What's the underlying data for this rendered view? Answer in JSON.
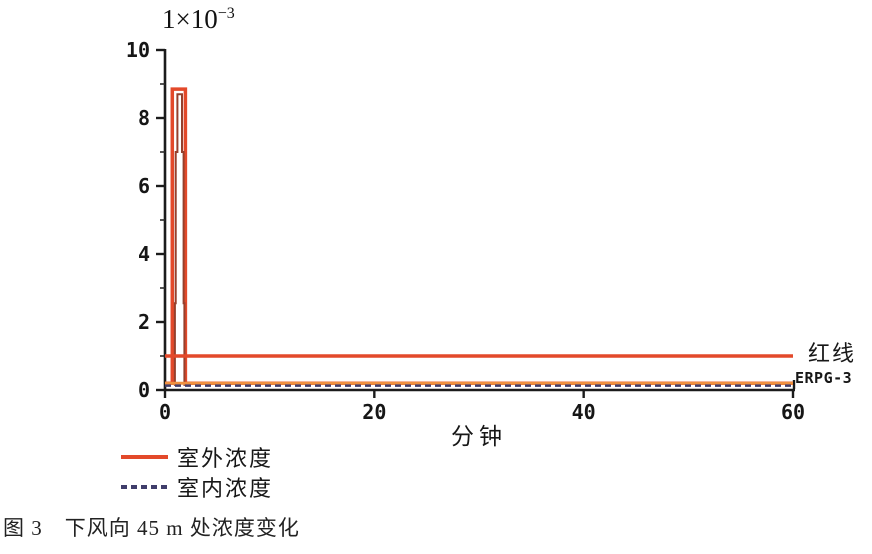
{
  "figure": {
    "caption": "图 3　下风向 45 m 处浓度变化"
  },
  "chart_data": {
    "type": "line",
    "title": "",
    "xlabel": "分钟",
    "ylabel": "",
    "y_multiplier_base": "1×10",
    "y_multiplier_exp": "−3",
    "xlim": [
      0,
      60
    ],
    "ylim": [
      0,
      10
    ],
    "x_ticks": [
      0,
      20,
      40,
      60
    ],
    "y_ticks": [
      0,
      2,
      4,
      6,
      8,
      10
    ],
    "y_minor_ticks": [
      1,
      3,
      5,
      7,
      9
    ],
    "grid": false,
    "peak_value_e-3": 8.8,
    "series": [
      {
        "id": "outdoor",
        "name": "室外浓度",
        "color": "#e3492a",
        "width": 3.5,
        "dash": "",
        "points": [
          [
            0,
            0.2
          ],
          [
            0.7,
            0.2
          ],
          [
            0.7,
            8.85
          ],
          [
            1.95,
            8.85
          ],
          [
            1.95,
            0.2
          ],
          [
            60,
            0.2
          ]
        ]
      },
      {
        "id": "outdoor-peak-inner-edge",
        "name": "",
        "color": "#96402c",
        "width": 2,
        "dash": "",
        "points": [
          [
            0.95,
            0.12
          ],
          [
            0.95,
            2.55
          ],
          [
            1.02,
            2.55
          ],
          [
            1.02,
            7.0
          ],
          [
            1.18,
            7.0
          ],
          [
            1.18,
            8.7
          ],
          [
            1.62,
            8.7
          ],
          [
            1.62,
            7.0
          ],
          [
            1.78,
            7.0
          ],
          [
            1.78,
            2.55
          ],
          [
            1.85,
            2.55
          ],
          [
            1.85,
            0.12
          ]
        ]
      },
      {
        "id": "redline",
        "name": "红线",
        "label": "红线",
        "color": "#e3492a",
        "width": 3.5,
        "dash": "",
        "points": [
          [
            0,
            1.0
          ],
          [
            60,
            1.0
          ]
        ]
      },
      {
        "id": "erpg3",
        "name": "ERPG-3",
        "label": "ERPG-3",
        "color": "#ef9140",
        "width": 3,
        "dash": "",
        "points": [
          [
            0,
            0.2
          ],
          [
            60,
            0.2
          ]
        ]
      },
      {
        "id": "indoor",
        "name": "室内浓度",
        "color": "#403d6b",
        "width": 2.5,
        "dash": "6,4",
        "points": [
          [
            0,
            0.13
          ],
          [
            60,
            0.13
          ]
        ]
      }
    ],
    "legend": {
      "position": "below-left",
      "items": [
        {
          "label": "室外浓度",
          "style": "solid"
        },
        {
          "label": "室内浓度",
          "style": "dashed"
        }
      ]
    }
  }
}
